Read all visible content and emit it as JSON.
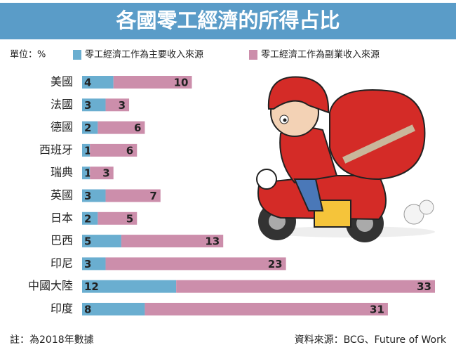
{
  "chart_data": {
    "type": "stacked-bar",
    "title": "各國零工經濟的所得占比",
    "unit": "單位：%",
    "categories": [
      "美國",
      "法國",
      "德國",
      "西班牙",
      "瑞典",
      "英國",
      "日本",
      "巴西",
      "印尼",
      "中國大陸",
      "印度"
    ],
    "series": [
      {
        "name": "零工經濟工作為主要收入來源",
        "color": "#6aaed0",
        "values": [
          4,
          3,
          2,
          1,
          1,
          3,
          2,
          5,
          3,
          12,
          8
        ]
      },
      {
        "name": "零工經濟工作為副業收入來源",
        "color": "#cc8eab",
        "values": [
          10,
          3,
          6,
          6,
          3,
          7,
          5,
          13,
          23,
          33,
          31
        ]
      }
    ],
    "note": "註：為2018年數據",
    "source": "資料來源：BCG、Future  of Work"
  }
}
